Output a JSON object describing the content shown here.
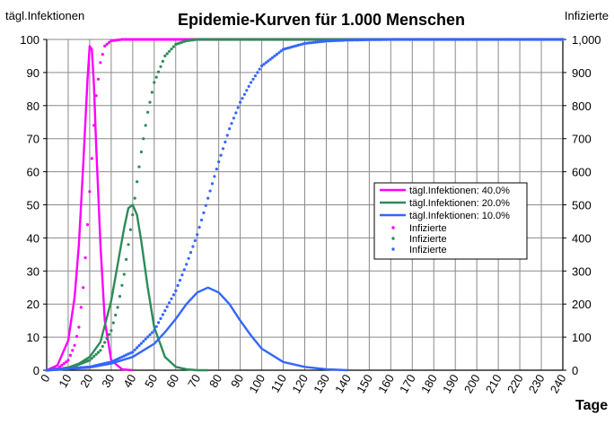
{
  "chart_data": {
    "type": "line",
    "title": "Epidemie-Kurven für 1.000 Menschen",
    "ylabel_left": "tägl.Infektionen",
    "ylabel_right": "Infizierte",
    "xlabel": "Tage",
    "xlim": [
      0,
      240
    ],
    "ylim_left": [
      0,
      100
    ],
    "ylim_right": [
      0,
      1000
    ],
    "x_ticks": [
      "0",
      "10",
      "20",
      "30",
      "40",
      "50",
      "60",
      "70",
      "80",
      "90",
      "100",
      "110",
      "120",
      "130",
      "140",
      "150",
      "160",
      "170",
      "180",
      "190",
      "200",
      "210",
      "220",
      "230",
      "240"
    ],
    "y_left_ticks": [
      "0",
      "10",
      "20",
      "30",
      "40",
      "50",
      "60",
      "70",
      "80",
      "90",
      "100"
    ],
    "y_right_ticks": [
      "0",
      "100",
      "200",
      "300",
      "400",
      "500",
      "600",
      "700",
      "800",
      "900",
      "1,000"
    ],
    "grid": true,
    "legend_position": "right",
    "series": [
      {
        "name": "tägl.Infektionen: 40.0%",
        "kind": "line",
        "axis": "left",
        "color": "#ff00ff",
        "x": [
          0,
          5,
          10,
          13,
          15,
          17,
          18,
          19,
          20,
          21,
          22,
          23,
          25,
          27,
          30,
          35,
          40
        ],
        "y": [
          0,
          1.5,
          9,
          22,
          38,
          62,
          75,
          88,
          98,
          97,
          86,
          68,
          38,
          15,
          3,
          0.3,
          0
        ]
      },
      {
        "name": "tägl.Infektionen: 20.0%",
        "kind": "line",
        "axis": "left",
        "color": "#2e8b57",
        "x": [
          0,
          10,
          15,
          20,
          25,
          30,
          33,
          36,
          38,
          40,
          42,
          44,
          47,
          50,
          55,
          60,
          65,
          70,
          75
        ],
        "y": [
          0,
          0.8,
          2,
          4,
          8.5,
          21,
          32,
          43,
          49,
          50,
          47,
          39,
          25,
          13,
          4,
          1,
          0.3,
          0,
          0
        ]
      },
      {
        "name": "tägl.Infektionen: 10.0%",
        "kind": "line",
        "axis": "left",
        "color": "#3366ff",
        "x": [
          0,
          20,
          30,
          40,
          50,
          55,
          60,
          65,
          70,
          75,
          80,
          85,
          90,
          95,
          100,
          110,
          120,
          130,
          140
        ],
        "y": [
          0,
          0.8,
          2,
          4,
          8,
          11.5,
          15.5,
          20,
          23.5,
          25,
          23.5,
          20,
          15,
          10.5,
          6.5,
          2.5,
          1,
          0.3,
          0
        ]
      },
      {
        "name": "Infizierte",
        "kind": "points",
        "axis": "right",
        "color": "#ff00ff",
        "x": [
          0,
          5,
          10,
          13,
          15,
          17,
          18,
          19,
          20,
          21,
          22,
          23,
          25,
          27,
          30,
          35,
          40,
          240
        ],
        "y": [
          0,
          5,
          30,
          75,
          130,
          250,
          340,
          440,
          540,
          640,
          740,
          830,
          930,
          980,
          996,
          1000,
          1000,
          1000
        ]
      },
      {
        "name": "Infizierte",
        "kind": "points",
        "axis": "right",
        "color": "#2e8b57",
        "x": [
          0,
          10,
          20,
          25,
          30,
          33,
          36,
          38,
          40,
          42,
          44,
          47,
          50,
          55,
          60,
          65,
          70,
          80,
          240
        ],
        "y": [
          0,
          5,
          30,
          60,
          120,
          190,
          290,
          380,
          470,
          570,
          660,
          780,
          870,
          950,
          985,
          996,
          1000,
          1000,
          1000
        ]
      },
      {
        "name": "Infizierte",
        "kind": "points",
        "axis": "right",
        "color": "#3366ff",
        "x": [
          0,
          20,
          30,
          40,
          50,
          60,
          65,
          70,
          75,
          80,
          85,
          90,
          95,
          100,
          110,
          120,
          130,
          140,
          160,
          240
        ],
        "y": [
          0,
          10,
          25,
          55,
          120,
          240,
          320,
          410,
          520,
          630,
          730,
          810,
          870,
          920,
          970,
          988,
          995,
          998,
          1000,
          1000
        ]
      }
    ]
  }
}
